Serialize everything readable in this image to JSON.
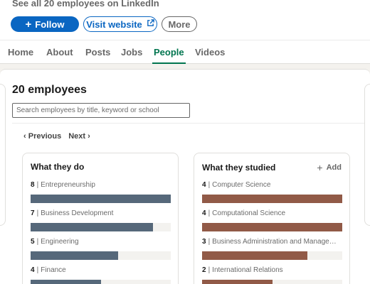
{
  "header": {
    "see_all": "See all 20 employees on LinkedIn",
    "follow_label": "Follow",
    "visit_label": "Visit website",
    "more_label": "More"
  },
  "tabs": [
    {
      "label": "Home",
      "active": false
    },
    {
      "label": "About",
      "active": false
    },
    {
      "label": "Posts",
      "active": false
    },
    {
      "label": "Jobs",
      "active": false
    },
    {
      "label": "People",
      "active": true
    },
    {
      "label": "Videos",
      "active": false
    }
  ],
  "people": {
    "title": "20 employees",
    "search_placeholder": "Search employees by title, keyword or school",
    "pager": {
      "previous": "Previous",
      "next": "Next"
    }
  },
  "insights": {
    "what_they_do": {
      "title": "What they do",
      "color": "#56687a",
      "max": 8,
      "items": [
        {
          "count": 8,
          "label": "Entrepreneurship"
        },
        {
          "count": 7,
          "label": "Business Development"
        },
        {
          "count": 5,
          "label": "Engineering"
        },
        {
          "count": 4,
          "label": "Finance"
        }
      ]
    },
    "what_they_studied": {
      "title": "What they studied",
      "add_label": "Add",
      "color": "#915a47",
      "max": 4,
      "items": [
        {
          "count": 4,
          "label": "Computer Science"
        },
        {
          "count": 4,
          "label": "Computational Science"
        },
        {
          "count": 3,
          "label": "Business Administration and Manage…"
        },
        {
          "count": 2,
          "label": "International Relations"
        }
      ]
    }
  },
  "colors": {
    "brand": "#0a66c2",
    "active_tab": "#01754f"
  }
}
